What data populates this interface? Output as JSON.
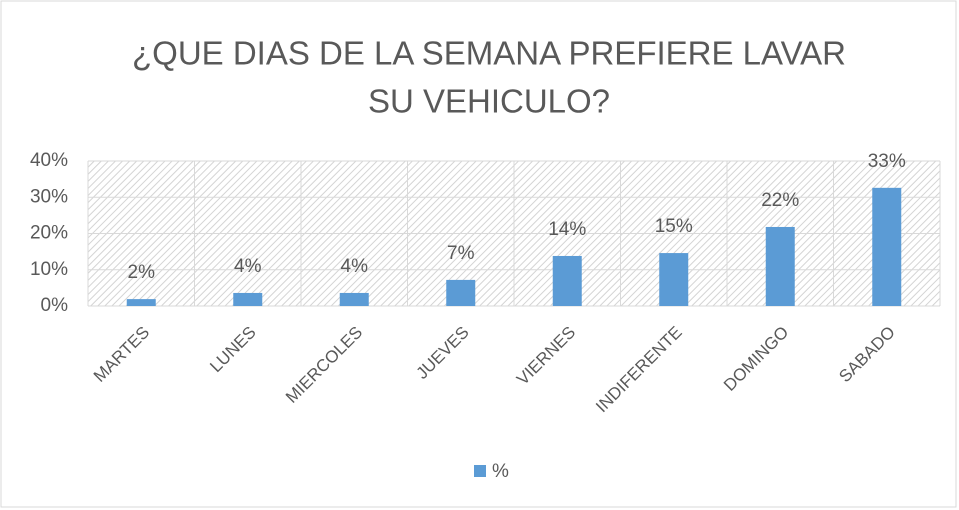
{
  "chart_data": {
    "type": "bar",
    "title": [
      "¿QUE DIAS DE LA SEMANA PREFIERE LAVAR",
      "SU VEHICULO?"
    ],
    "categories": [
      "MARTES",
      "LUNES",
      "MIERCOLES",
      "JUEVES",
      "VIERNES",
      "INDIFERENTE",
      "DOMINGO",
      "SABADO"
    ],
    "series": [
      {
        "name": "%",
        "color": "#5b9bd5",
        "values": [
          1.9,
          3.6,
          3.6,
          7.2,
          13.8,
          14.6,
          21.8,
          32.6
        ],
        "value_labels": [
          "2%",
          "4%",
          "4%",
          "7%",
          "14%",
          "15%",
          "22%",
          "33%"
        ]
      }
    ],
    "ylim": [
      0,
      40
    ],
    "yticks": [
      {
        "value": 0,
        "label": "0%"
      },
      {
        "value": 10,
        "label": "10%"
      },
      {
        "value": 20,
        "label": "20%"
      },
      {
        "value": 30,
        "label": "30%"
      },
      {
        "value": 40,
        "label": "40%"
      }
    ],
    "grid": true,
    "legend": "bottom"
  }
}
